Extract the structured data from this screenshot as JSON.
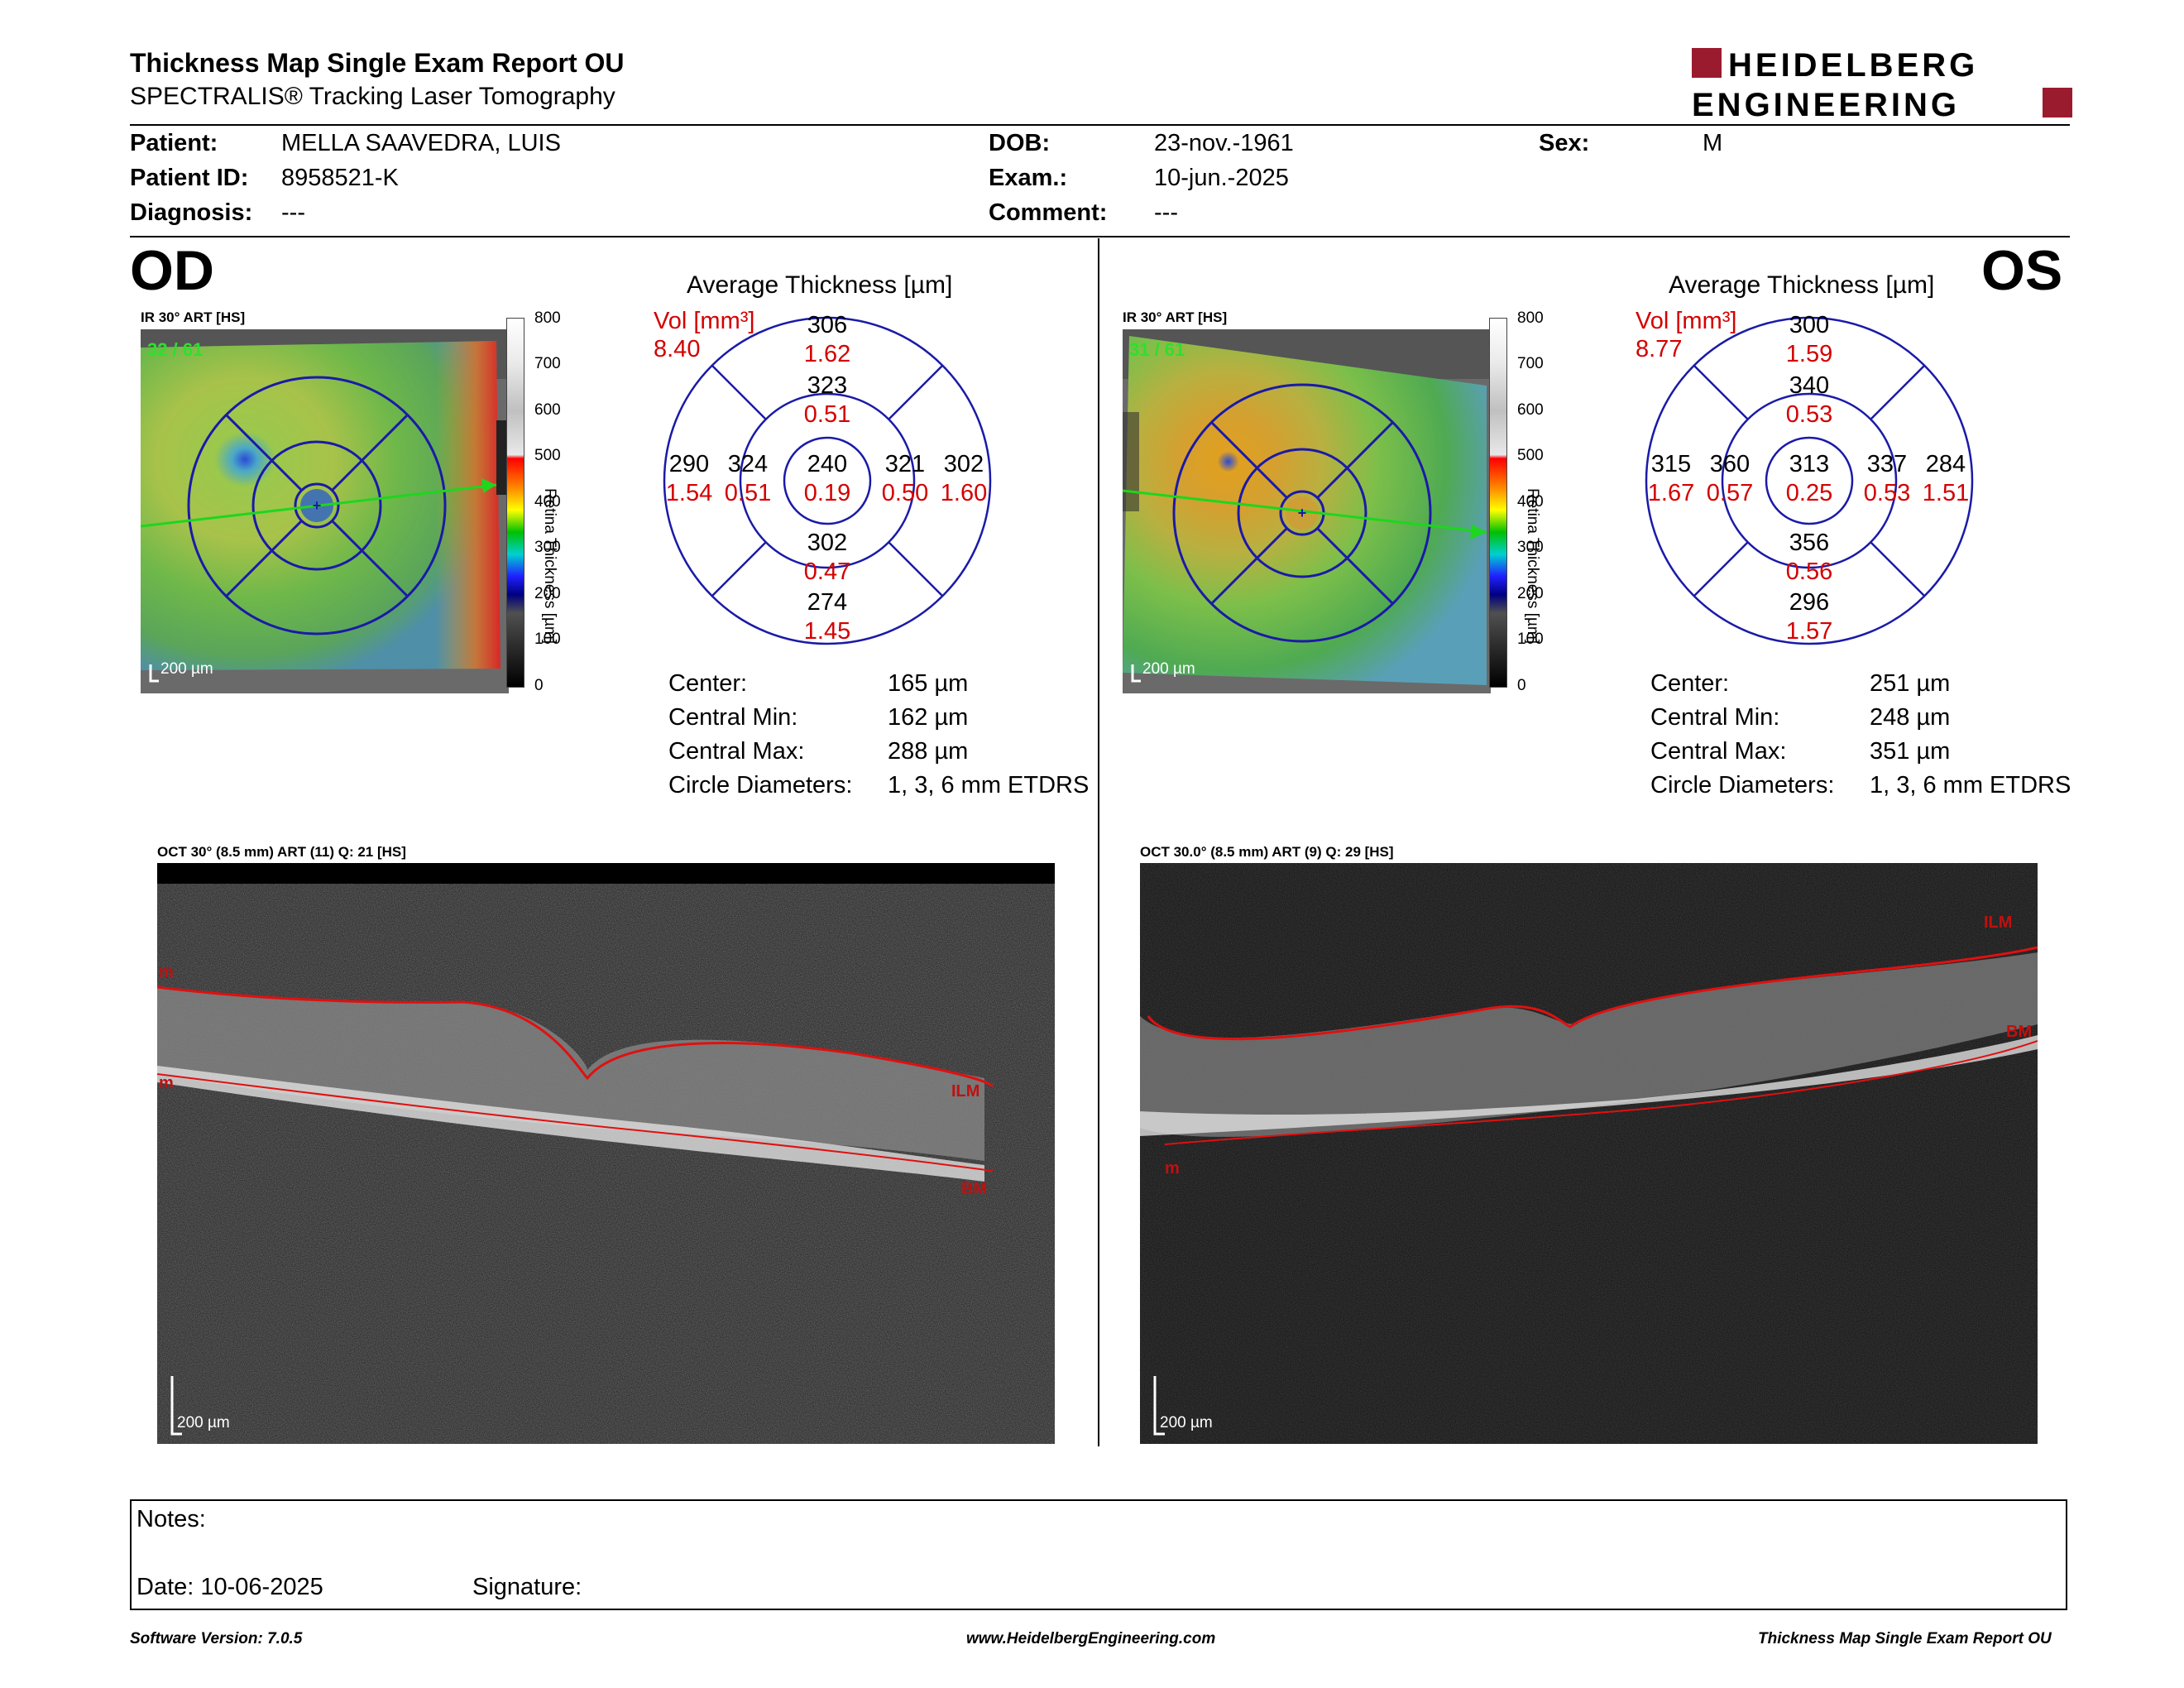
{
  "header": {
    "title": "Thickness Map Single Exam Report OU",
    "subtitle": "SPECTRALIS® Tracking Laser Tomography",
    "logo_line1": "HEIDELBERG",
    "logo_line2": "ENGINEERING"
  },
  "patient": {
    "patient_label": "Patient:",
    "patient_value": "MELLA SAAVEDRA, LUIS",
    "id_label": "Patient ID:",
    "id_value": "8958521-K",
    "diagnosis_label": "Diagnosis:",
    "diagnosis_value": "---",
    "dob_label": "DOB:",
    "dob_value": "23-nov.-1961",
    "exam_label": "Exam.:",
    "exam_value": "10-jun.-2025",
    "comment_label": "Comment:",
    "comment_value": "---",
    "sex_label": "Sex:",
    "sex_value": "M"
  },
  "colorbar": {
    "ticks": [
      "800",
      "700",
      "600",
      "500",
      "400",
      "300",
      "200",
      "100",
      "0"
    ],
    "label": "Retina Thickness [µm]"
  },
  "od": {
    "eye": "OD",
    "ir_label": "IR 30° ART [HS]",
    "frames": "32 / 61",
    "scale": "200 µm",
    "avg_title": "Average Thickness [µm]",
    "vol_label": "Vol [mm³]",
    "vol_total": "8.40",
    "sectors": {
      "outer_sup": [
        "306",
        "1.62"
      ],
      "inner_sup": [
        "323",
        "0.51"
      ],
      "outer_temp": [
        "290",
        "1.54"
      ],
      "inner_temp": [
        "324",
        "0.51"
      ],
      "center": [
        "240",
        "0.19"
      ],
      "inner_nas": [
        "321",
        "0.50"
      ],
      "outer_nas": [
        "302",
        "1.60"
      ],
      "inner_inf": [
        "302",
        "0.47"
      ],
      "outer_inf": [
        "274",
        "1.45"
      ]
    },
    "stats": {
      "center_label": "Center:",
      "center_value": "165 µm",
      "min_label": "Central Min:",
      "min_value": "162 µm",
      "max_label": "Central Max:",
      "max_value": "288 µm",
      "diam_label": "Circle Diameters:",
      "diam_value": "1, 3, 6 mm ETDRS"
    },
    "oct_label": "OCT 30° (8.5 mm) ART (11) Q: 21 [HS]",
    "oct_scale": "200 µm",
    "ilm": "ILM",
    "bm": "BM",
    "m1": "m",
    "m2": "m"
  },
  "os": {
    "eye": "OS",
    "ir_label": "IR 30° ART [HS]",
    "frames": "31 / 61",
    "scale": "200 µm",
    "avg_title": "Average Thickness [µm]",
    "vol_label": "Vol [mm³]",
    "vol_total": "8.77",
    "sectors": {
      "outer_sup": [
        "300",
        "1.59"
      ],
      "inner_sup": [
        "340",
        "0.53"
      ],
      "outer_temp": [
        "315",
        "1.67"
      ],
      "inner_temp": [
        "360",
        "0.57"
      ],
      "center": [
        "313",
        "0.25"
      ],
      "inner_nas": [
        "337",
        "0.53"
      ],
      "outer_nas": [
        "284",
        "1.51"
      ],
      "inner_inf": [
        "356",
        "0.56"
      ],
      "outer_inf": [
        "296",
        "1.57"
      ]
    },
    "stats": {
      "center_label": "Center:",
      "center_value": "251 µm",
      "min_label": "Central Min:",
      "min_value": "248 µm",
      "max_label": "Central Max:",
      "max_value": "351 µm",
      "diam_label": "Circle Diameters:",
      "diam_value": "1, 3, 6 mm ETDRS"
    },
    "oct_label": "OCT 30.0° (8.5 mm) ART (9) Q: 29 [HS]",
    "oct_scale": "200 µm",
    "ilm": "ILM",
    "bm": "BM",
    "m1": "m"
  },
  "notes": {
    "notes_label": "Notes:",
    "date_label": "Date: 10-06-2025",
    "signature_label": "Signature:"
  },
  "footer": {
    "version": "Software Version: 7.0.5",
    "url": "www.HeidelbergEngineering.com",
    "report": "Thickness Map Single Exam Report OU"
  },
  "colors": {
    "red": "#d40000",
    "blue": "#1a1aa8",
    "brand": "#9b1b2e"
  }
}
